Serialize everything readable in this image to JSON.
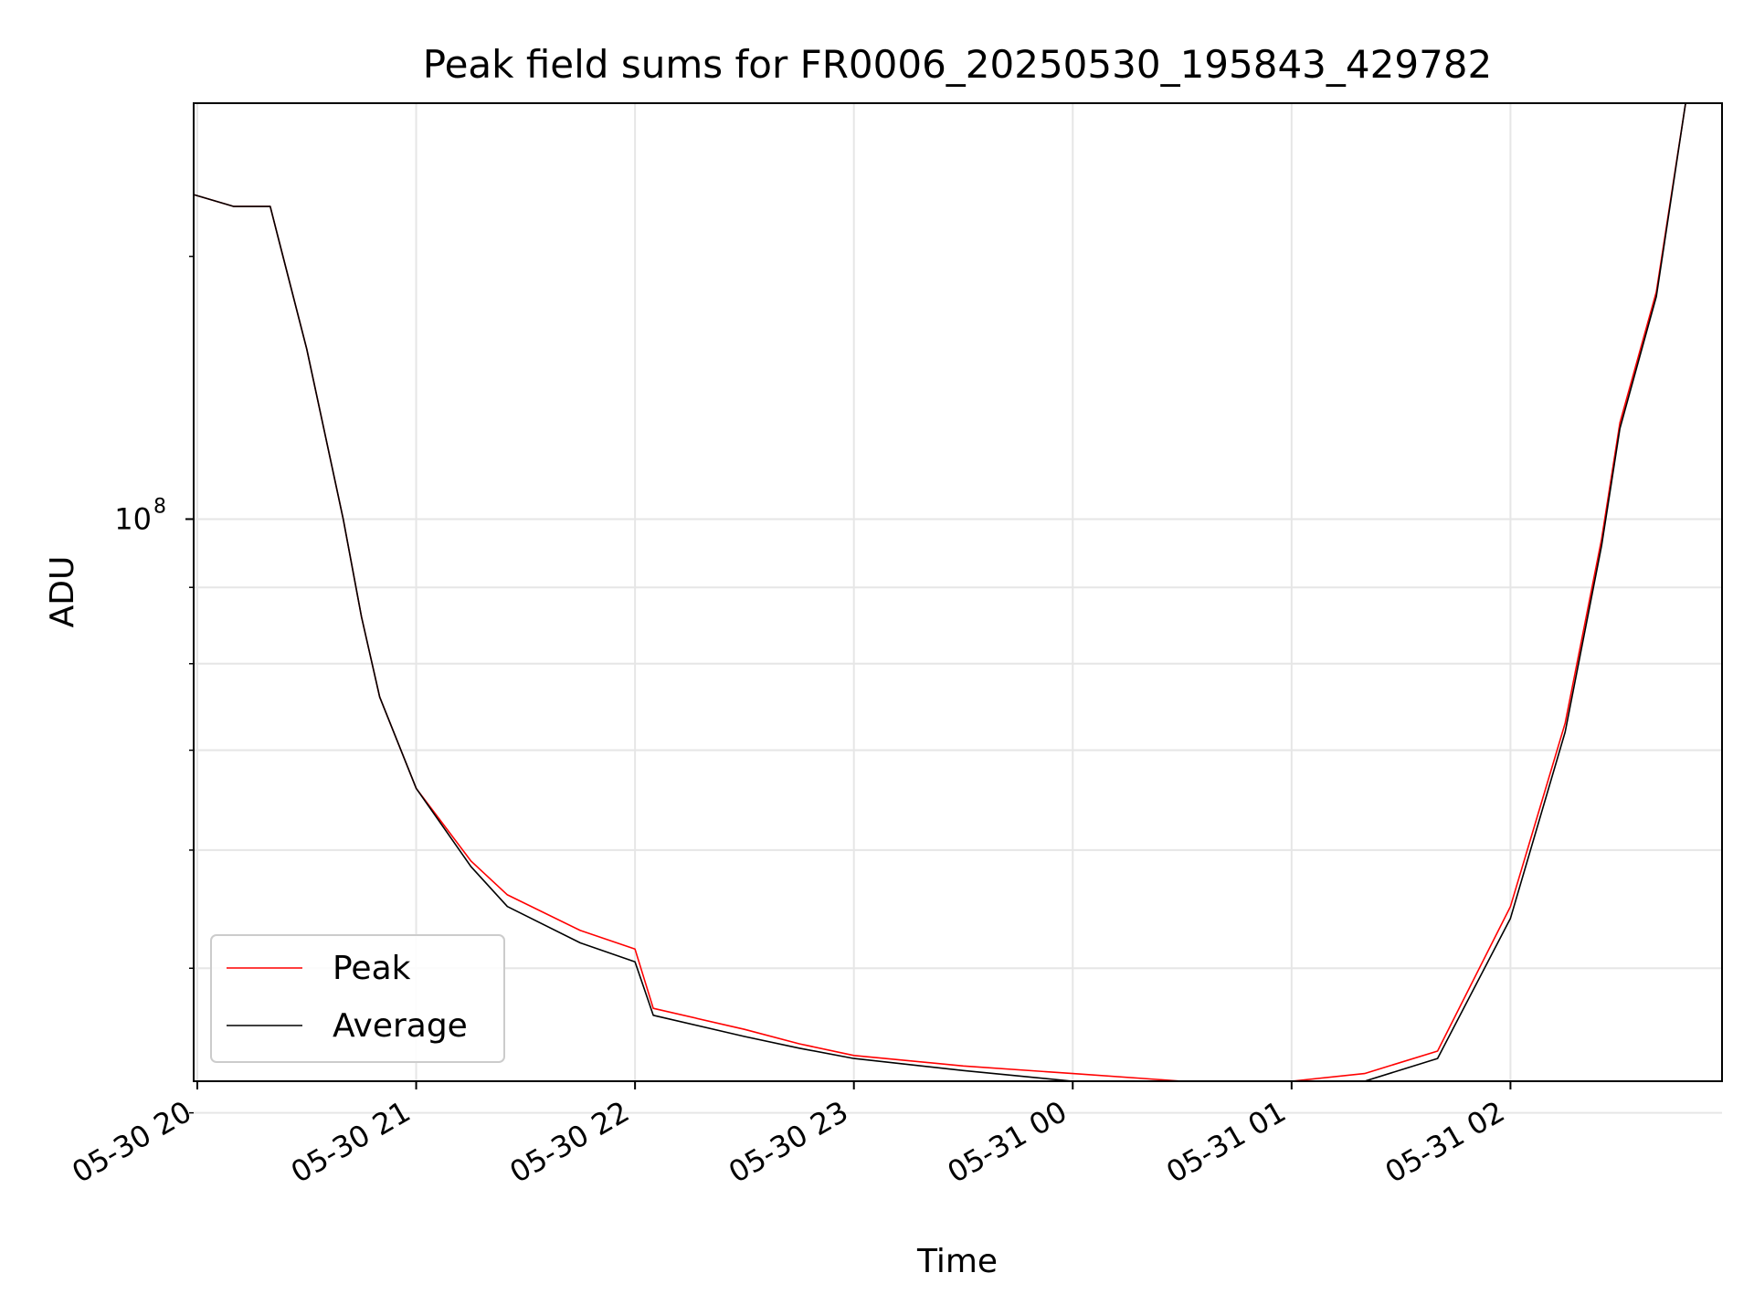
{
  "chart_data": {
    "type": "line",
    "title": "Peak field sums for FR0006_20250530_195843_429782",
    "xlabel": "Time",
    "ylabel": "ADU",
    "yscale": "log",
    "xlim": [
      "2025-05-30 19:59",
      "2025-05-31 02:58"
    ],
    "ylim": [
      42000000.0,
      190000000.0
    ],
    "grid": true,
    "legend_position": "lower-left",
    "x_ticks": [
      "05-30 20",
      "05-30 21",
      "05-30 22",
      "05-30 23",
      "05-31 00",
      "05-31 01",
      "05-31 02"
    ],
    "y_tick_base": "10",
    "y_tick_exponent": "8",
    "series": [
      {
        "name": "Peak",
        "color": "#ff0000",
        "x": [
          "2025-05-30 19:59",
          "2025-05-30 20:10",
          "2025-05-30 20:20",
          "2025-05-30 20:22",
          "2025-05-30 20:30",
          "2025-05-30 20:40",
          "2025-05-30 20:45",
          "2025-05-30 20:50",
          "2025-05-30 21:00",
          "2025-05-30 21:15",
          "2025-05-30 21:25",
          "2025-05-30 21:45",
          "2025-05-30 22:00",
          "2025-05-30 22:05",
          "2025-05-30 22:30",
          "2025-05-30 22:45",
          "2025-05-30 23:00",
          "2025-05-30 23:30",
          "2025-05-31 00:00",
          "2025-05-31 00:30",
          "2025-05-31 01:00",
          "2025-05-31 01:20",
          "2025-05-31 01:40",
          "2025-05-31 02:00",
          "2025-05-31 02:15",
          "2025-05-31 02:25",
          "2025-05-31 02:30",
          "2025-05-31 02:40",
          "2025-05-31 02:48"
        ],
        "y": [
          165000000.0,
          162000000.0,
          162000000.0,
          155000000.0,
          130000000.0,
          100000000.0,
          86000000.0,
          76000000.0,
          66000000.0,
          59000000.0,
          56000000.0,
          53000000.0,
          51500000.0,
          47000000.0,
          45500000.0,
          44500000.0,
          43700000.0,
          43000000.0,
          42500000.0,
          42000000.0,
          42000000.0,
          42500000.0,
          44000000.0,
          55000000.0,
          73000000.0,
          97000000.0,
          116000000.0,
          142000000.0,
          190000000.0
        ]
      },
      {
        "name": "Average",
        "color": "#000000",
        "x": [
          "2025-05-30 19:59",
          "2025-05-30 20:10",
          "2025-05-30 20:20",
          "2025-05-30 20:22",
          "2025-05-30 20:30",
          "2025-05-30 20:40",
          "2025-05-30 20:45",
          "2025-05-30 20:50",
          "2025-05-30 21:00",
          "2025-05-30 21:15",
          "2025-05-30 21:25",
          "2025-05-30 21:45",
          "2025-05-30 22:00",
          "2025-05-30 22:05",
          "2025-05-30 22:30",
          "2025-05-30 22:45",
          "2025-05-30 23:00",
          "2025-05-30 23:30",
          "2025-05-31 00:00",
          "2025-05-31 00:30",
          "2025-05-31 01:00",
          "2025-05-31 01:20",
          "2025-05-31 01:40",
          "2025-05-31 02:00",
          "2025-05-31 02:15",
          "2025-05-31 02:25",
          "2025-05-31 02:30",
          "2025-05-31 02:40",
          "2025-05-31 02:48"
        ],
        "y": [
          165000000.0,
          162000000.0,
          162000000.0,
          155000000.0,
          130000000.0,
          100000000.0,
          86000000.0,
          76000000.0,
          66000000.0,
          58500000.0,
          55000000.0,
          52000000.0,
          50500000.0,
          46500000.0,
          45000000.0,
          44200000.0,
          43500000.0,
          42700000.0,
          42000000.0,
          41500000.0,
          41300000.0,
          41800000.0,
          43500000.0,
          54000000.0,
          72000000.0,
          96000000.0,
          115000000.0,
          141000000.0,
          190000000.0
        ]
      }
    ]
  }
}
